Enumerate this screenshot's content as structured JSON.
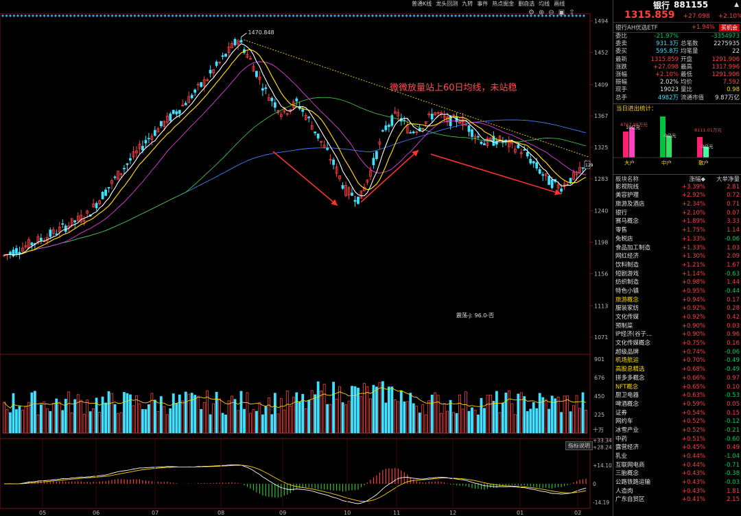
{
  "toolbar": {
    "items": [
      "普通K线",
      "龙头回测",
      "九转",
      "事件",
      "热点掘金",
      "删自选",
      "均线",
      "画线"
    ]
  },
  "chart_labels": {
    "max_price": "1470.848",
    "annotation": "微微放量站上60日均线，未站稳",
    "kline_pattern": "震荡-J: 96.0-否",
    "current_price_tag": "129",
    "indicator_button": "指标说明",
    "volume_unit": "十万"
  },
  "y_axis_price": [
    "1494",
    "1452",
    "1409",
    "1367",
    "1325",
    "1283",
    "1240",
    "1198",
    "1156",
    "1113",
    "1071"
  ],
  "y_axis_volume": [
    "901",
    "676",
    "450",
    "225"
  ],
  "y_axis_macd": [
    "+33.34",
    "+28.24",
    "+14.10",
    "0",
    "-14.19"
  ],
  "x_axis_months": [
    "05",
    "06",
    "07",
    "08",
    "09",
    "10",
    "11",
    "12",
    "01",
    "02"
  ],
  "quote": {
    "name": "银行",
    "code": "881155",
    "price": "1315.859",
    "change": "+27.098",
    "change_pct": "+2.10%",
    "etf_name": "银行AH优选ETF",
    "etf_change": "+1.94%",
    "etf_button": "买机会",
    "rows": [
      {
        "l1": "委比",
        "v1": "-21.97%",
        "c1": "green",
        "l2": "",
        "v2": "-3354973",
        "c2": "green"
      },
      {
        "l1": "委卖",
        "v1": "931.3万",
        "c1": "cyan",
        "l2": "总笔数",
        "v2": "2275935",
        "c2": "white"
      },
      {
        "l1": "委买",
        "v1": "595.8万",
        "c1": "cyan",
        "l2": "均笔量",
        "v2": "22",
        "c2": "white"
      },
      {
        "l1": "最新",
        "v1": "1315.859",
        "c1": "red",
        "l2": "开盘",
        "v2": "1291.906",
        "c2": "red"
      },
      {
        "l1": "涨跌",
        "v1": "+27.098",
        "c1": "red",
        "l2": "最高",
        "v2": "1317.996",
        "c2": "red"
      },
      {
        "l1": "涨幅",
        "v1": "+2.10%",
        "c1": "red",
        "l2": "最低",
        "v2": "1291.906",
        "c2": "red"
      },
      {
        "l1": "振幅",
        "v1": "2.02%",
        "c1": "white",
        "l2": "均价",
        "v2": "7.592",
        "c2": "red"
      },
      {
        "l1": "现手",
        "v1": "19023",
        "c1": "white",
        "l2": "量比",
        "v2": "0.98",
        "c2": "yellow"
      },
      {
        "l1": "总手",
        "v1": "4982万",
        "c1": "cyan",
        "l2": "流通市值",
        "v2": "9.87万亿",
        "c2": "white"
      }
    ]
  },
  "fund_flow": {
    "title": "当日进出统计：",
    "groups": [
      {
        "name": "大户",
        "in_label": "4767.98万元",
        "out_label": "10亿元",
        "in_value": 4767.98,
        "out_value": 100000
      },
      {
        "name": "中户",
        "in_label": "-1.69亿元",
        "out_label": "-0亿元",
        "in_value": -16900,
        "out_value": 0
      },
      {
        "name": "散户",
        "in_label": "8111.01万元",
        "out_label": "-3亿元",
        "in_value": 8111.01,
        "out_value": -30000
      }
    ]
  },
  "sector_header": [
    "板块名称",
    "涨幅◆",
    "大单净量"
  ],
  "sectors": [
    {
      "name": "影视院线",
      "chg": "+3.39%",
      "flow": "2.81",
      "flow_color": "red",
      "hl": false
    },
    {
      "name": "美容护理",
      "chg": "+2.92%",
      "flow": "0.72",
      "flow_color": "red",
      "hl": false
    },
    {
      "name": "旅游及酒店",
      "chg": "+2.34%",
      "flow": "0.71",
      "flow_color": "red",
      "hl": false
    },
    {
      "name": "银行",
      "chg": "+2.10%",
      "flow": "0.07",
      "flow_color": "red",
      "hl": false
    },
    {
      "name": "赛马概念",
      "chg": "+1.89%",
      "flow": "3.33",
      "flow_color": "red",
      "hl": false
    },
    {
      "name": "零售",
      "chg": "+1.75%",
      "flow": "1.14",
      "flow_color": "red",
      "hl": false
    },
    {
      "name": "免税店",
      "chg": "+1.33%",
      "flow": "-0.06",
      "flow_color": "green",
      "hl": false
    },
    {
      "name": "食品加工制造",
      "chg": "+1.33%",
      "flow": "1.03",
      "flow_color": "red",
      "hl": false
    },
    {
      "name": "网红经济",
      "chg": "+1.30%",
      "flow": "2.09",
      "flow_color": "red",
      "hl": false
    },
    {
      "name": "饮料制造",
      "chg": "+1.21%",
      "flow": "1.67",
      "flow_color": "red",
      "hl": false
    },
    {
      "name": "短剧游戏",
      "chg": "+1.14%",
      "flow": "-0.63",
      "flow_color": "green",
      "hl": false
    },
    {
      "name": "纺织制造",
      "chg": "+0.98%",
      "flow": "1.44",
      "flow_color": "red",
      "hl": false
    },
    {
      "name": "特色小镇",
      "chg": "+0.95%",
      "flow": "-0.44",
      "flow_color": "green",
      "hl": false
    },
    {
      "name": "旅游概念",
      "chg": "+0.94%",
      "flow": "0.17",
      "flow_color": "red",
      "hl": true
    },
    {
      "name": "服装家纺",
      "chg": "+0.92%",
      "flow": "0.28",
      "flow_color": "red",
      "hl": false
    },
    {
      "name": "文化传媒",
      "chg": "+0.92%",
      "flow": "0.42",
      "flow_color": "red",
      "hl": false
    },
    {
      "name": "预制菜",
      "chg": "+0.90%",
      "flow": "0.03",
      "flow_color": "red",
      "hl": false
    },
    {
      "name": "IP经济(谷子...",
      "chg": "+0.90%",
      "flow": "0.96",
      "flow_color": "red",
      "hl": false
    },
    {
      "name": "文化传媒概念",
      "chg": "+0.75%",
      "flow": "0.16",
      "flow_color": "red",
      "hl": false
    },
    {
      "name": "超级品牌",
      "chg": "+0.74%",
      "flow": "-0.06",
      "flow_color": "green",
      "hl": false
    },
    {
      "name": "机场航运",
      "chg": "+0.70%",
      "flow": "-0.49",
      "flow_color": "green",
      "hl": true
    },
    {
      "name": "高股息精选",
      "chg": "+0.68%",
      "flow": "-0.49",
      "flow_color": "green",
      "hl": true
    },
    {
      "name": "拼多多概念",
      "chg": "+0.66%",
      "flow": "0.97",
      "flow_color": "red",
      "hl": false
    },
    {
      "name": "NFT概念",
      "chg": "+0.65%",
      "flow": "0.10",
      "flow_color": "red",
      "hl": true
    },
    {
      "name": "厨卫电器",
      "chg": "+0.63%",
      "flow": "-0.53",
      "flow_color": "green",
      "hl": false
    },
    {
      "name": "啤酒概念",
      "chg": "+0.59%",
      "flow": "0.05",
      "flow_color": "red",
      "hl": false
    },
    {
      "name": "证券",
      "chg": "+0.54%",
      "flow": "0.15",
      "flow_color": "red",
      "hl": false
    },
    {
      "name": "网约车",
      "chg": "+0.52%",
      "flow": "-0.12",
      "flow_color": "green",
      "hl": false
    },
    {
      "name": "冰雪产业",
      "chg": "+0.52%",
      "flow": "-0.21",
      "flow_color": "green",
      "hl": false
    },
    {
      "name": "中药",
      "chg": "+0.51%",
      "flow": "-0.60",
      "flow_color": "green",
      "hl": false
    },
    {
      "name": "露营经济",
      "chg": "+0.45%",
      "flow": "0.49",
      "flow_color": "red",
      "hl": false
    },
    {
      "name": "乳业",
      "chg": "+0.44%",
      "flow": "-1.04",
      "flow_color": "green",
      "hl": false
    },
    {
      "name": "互联网电商",
      "chg": "+0.44%",
      "flow": "-0.71",
      "flow_color": "green",
      "hl": false
    },
    {
      "name": "三胎概念",
      "chg": "+0.43%",
      "flow": "-0.38",
      "flow_color": "green",
      "hl": false
    },
    {
      "name": "公路铁路运输",
      "chg": "+0.43%",
      "flow": "-0.03",
      "flow_color": "green",
      "hl": false
    },
    {
      "name": "人造肉",
      "chg": "+0.43%",
      "flow": "1.81",
      "flow_color": "red",
      "hl": false
    },
    {
      "name": "广东自贸区",
      "chg": "+0.41%",
      "flow": "2.15",
      "flow_color": "red",
      "hl": false
    }
  ],
  "colors": {
    "up": "#ff4040",
    "down": "#40e0ff",
    "ma5": "#ffffff",
    "ma10": "#ffd700",
    "ma20": "#e040e0",
    "ma60": "#40c040",
    "ma120": "#4080ff",
    "trend": "#ffd700"
  }
}
